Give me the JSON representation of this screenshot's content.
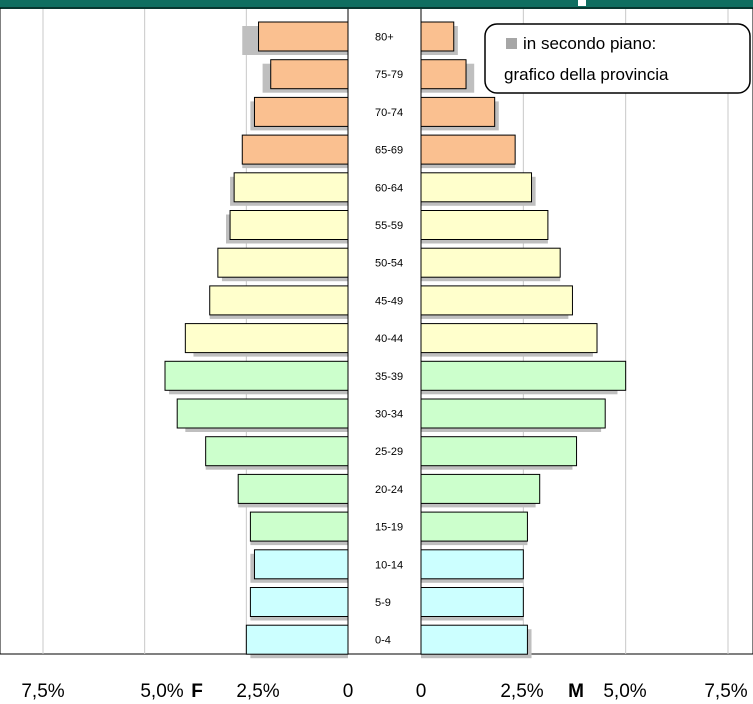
{
  "chart_data": {
    "type": "bar",
    "orientation": "horizontal",
    "categories": [
      "0-4",
      "5-9",
      "10-14",
      "15-19",
      "20-24",
      "25-29",
      "30-34",
      "35-39",
      "40-44",
      "45-49",
      "50-54",
      "55-59",
      "60-64",
      "65-69",
      "70-74",
      "75-79",
      "80+"
    ],
    "series": [
      {
        "side": "F",
        "values": [
          2.5,
          2.4,
          2.3,
          2.4,
          2.7,
          3.5,
          4.2,
          4.5,
          4.0,
          3.4,
          3.2,
          2.9,
          2.8,
          2.6,
          2.3,
          1.9,
          2.2
        ]
      },
      {
        "side": "M",
        "values": [
          2.6,
          2.5,
          2.5,
          2.6,
          2.9,
          3.8,
          4.5,
          5.0,
          4.3,
          3.7,
          3.4,
          3.1,
          2.7,
          2.3,
          1.8,
          1.1,
          0.8
        ]
      }
    ],
    "background_series": [
      {
        "side": "F",
        "values": [
          2.4,
          2.4,
          2.4,
          2.4,
          2.7,
          3.5,
          4.0,
          4.4,
          3.8,
          3.4,
          3.1,
          3.0,
          2.9,
          2.6,
          2.4,
          2.1,
          2.6
        ]
      },
      {
        "side": "M",
        "values": [
          2.7,
          2.5,
          2.5,
          2.6,
          2.8,
          3.7,
          4.4,
          4.8,
          4.2,
          3.6,
          3.4,
          3.1,
          2.8,
          2.3,
          1.9,
          1.3,
          0.9
        ]
      }
    ],
    "age_group_colors": {
      "0-14": "#ccffff",
      "15-39": "#ccffcc",
      "40-64": "#ffffcc",
      "65+": "#fac090"
    },
    "background_color": "#bfbfbf",
    "header_color": "#0f6e60",
    "xlim": [
      0,
      7.5
    ],
    "left_axis_ticks": [
      "7,5%",
      "5,0%",
      "2,5%",
      "0"
    ],
    "right_axis_ticks": [
      "0",
      "2,5%",
      "5,0%",
      "7,5%"
    ],
    "left_axis_label": "F",
    "right_axis_label": "M",
    "legend": {
      "line1": "in secondo piano:",
      "line2": "grafico della provincia",
      "position": "top-right"
    },
    "grid": true
  }
}
